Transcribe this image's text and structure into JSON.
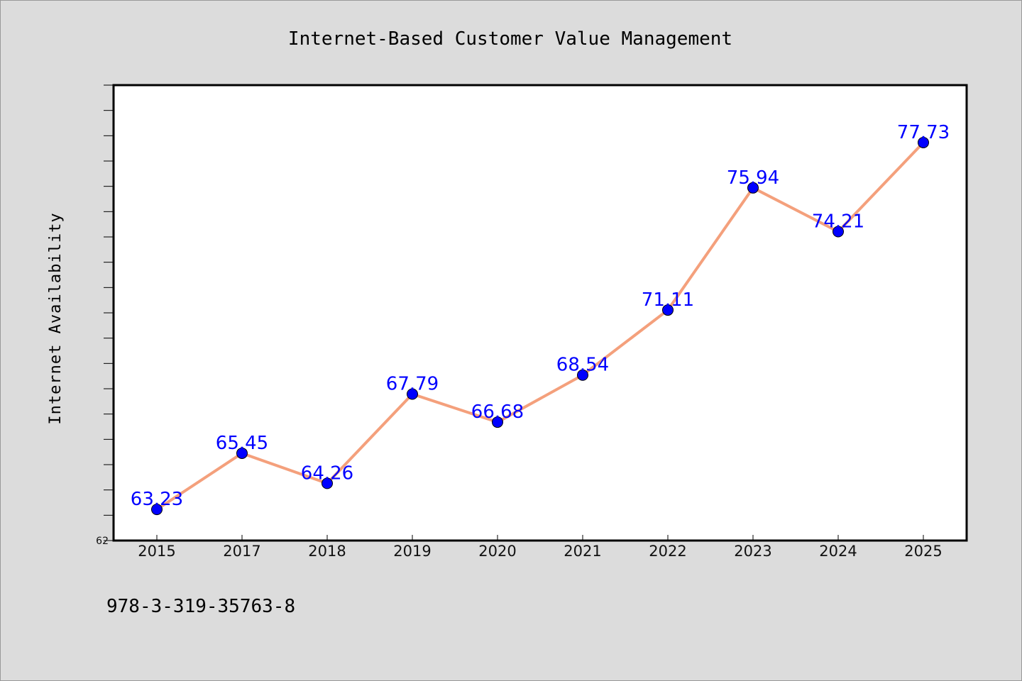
{
  "chart_data": {
    "type": "line",
    "title": "Internet-Based Customer Value Management",
    "xlabel": "",
    "ylabel": "Internet Availability",
    "categories": [
      "2015",
      "2017",
      "2018",
      "2019",
      "2020",
      "2021",
      "2022",
      "2023",
      "2024",
      "2025"
    ],
    "series": [
      {
        "values": [
          63.23,
          65.45,
          64.26,
          67.79,
          66.68,
          68.54,
          71.11,
          75.94,
          74.21,
          77.73
        ]
      }
    ],
    "data_labels": [
      "63.23",
      "65.45",
      "64.26",
      "67.79",
      "66.68",
      "68.54",
      "71.11",
      "75.94",
      "74.21",
      "77.73"
    ],
    "ylim": [
      62,
      80
    ],
    "y_tick_step": 1,
    "y_tick_labels": [
      "62"
    ],
    "grid": false,
    "line_color": "#f4a07c",
    "marker_color": "#0000ff",
    "label_color": "#0000ff"
  },
  "footer": {
    "isbn": "978-3-319-35763-8"
  }
}
